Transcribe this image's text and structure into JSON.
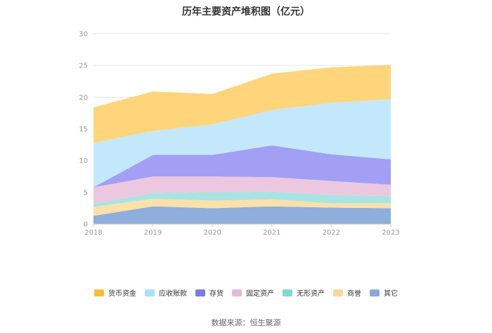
{
  "title": "历年主要资产堆积图（亿元）",
  "source": "数据来源：恒生聚源",
  "chart_data": {
    "type": "area",
    "stacked": true,
    "title": "历年主要资产堆积图（亿元）",
    "x": [
      "2018",
      "2019",
      "2020",
      "2021",
      "2022",
      "2023"
    ],
    "y_ticks": [
      "0",
      "5",
      "10",
      "15",
      "20",
      "25",
      "30"
    ],
    "ylim": [
      0,
      30
    ],
    "grid": true,
    "legend_position": "bottom",
    "series": [
      {
        "name": "其它",
        "color": "#8eaedc",
        "values": [
          1.3,
          2.8,
          2.5,
          2.8,
          2.6,
          2.5
        ]
      },
      {
        "name": "商誉",
        "color": "#fbe0a8",
        "values": [
          1.4,
          1.2,
          1.2,
          1.1,
          0.7,
          0.8
        ]
      },
      {
        "name": "无形资产",
        "color": "#a8e4e2",
        "values": [
          0.5,
          0.9,
          1.3,
          1.2,
          1.3,
          1.1
        ]
      },
      {
        "name": "固定资产",
        "color": "#ecc8e0",
        "values": [
          2.6,
          2.6,
          2.5,
          2.3,
          2.2,
          1.8
        ]
      },
      {
        "name": "存货",
        "color": "#a29ff5",
        "values": [
          0.0,
          3.4,
          3.4,
          5.0,
          4.2,
          4.0
        ]
      },
      {
        "name": "应收账款",
        "color": "#c3e8fb",
        "values": [
          7.0,
          3.8,
          4.8,
          5.6,
          8.1,
          9.5
        ]
      },
      {
        "name": "货币资金",
        "color": "#fed57a",
        "values": [
          5.6,
          6.2,
          4.8,
          5.7,
          5.6,
          5.4
        ]
      }
    ],
    "legend": [
      {
        "name": "货币资金",
        "color": "#f6bd36"
      },
      {
        "name": "应收账款",
        "color": "#a7e1f9"
      },
      {
        "name": "存货",
        "color": "#7b78ef"
      },
      {
        "name": "固定资产",
        "color": "#e6b7d9"
      },
      {
        "name": "无形资产",
        "color": "#7fd8d6"
      },
      {
        "name": "商誉",
        "color": "#fbd69a"
      },
      {
        "name": "其它",
        "color": "#8aa9da"
      }
    ]
  }
}
